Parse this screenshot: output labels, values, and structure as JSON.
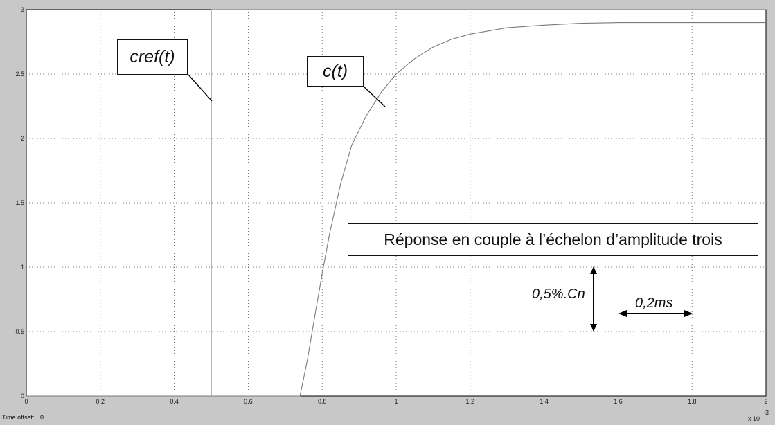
{
  "chart_data": {
    "type": "line",
    "xlabel": "",
    "ylabel": "",
    "xlim": [
      0,
      2
    ],
    "ylim": [
      0,
      3
    ],
    "x_ticks": [
      "0",
      "0.2",
      "0.4",
      "0.6",
      "0.8",
      "1",
      "1.2",
      "1.4",
      "1.6",
      "1.8",
      "2"
    ],
    "y_ticks": [
      "0",
      "0.5",
      "1",
      "1.5",
      "2",
      "2.5",
      "3"
    ],
    "x_exponent_label": "x 10",
    "x_exponent_power": "-3",
    "grid": true,
    "series": [
      {
        "name": "cref(t)",
        "x": [
          0,
          0.5,
          0.5,
          2
        ],
        "y": [
          0,
          0,
          3,
          3
        ]
      },
      {
        "name": "c(t)",
        "x": [
          0,
          0.74,
          0.76,
          0.78,
          0.8,
          0.82,
          0.85,
          0.88,
          0.92,
          0.96,
          1.0,
          1.05,
          1.1,
          1.15,
          1.2,
          1.3,
          1.4,
          1.5,
          1.6,
          1.7,
          1.8,
          1.9,
          2.0
        ],
        "y": [
          0,
          0,
          0.28,
          0.62,
          0.95,
          1.26,
          1.65,
          1.95,
          2.18,
          2.36,
          2.5,
          2.62,
          2.71,
          2.77,
          2.81,
          2.86,
          2.88,
          2.895,
          2.9,
          2.9,
          2.9,
          2.9,
          2.9
        ]
      }
    ],
    "annotations": {
      "cref_label": "cref(t)",
      "c_label": "c(t)",
      "title": "Réponse en couple à l’échelon d’amplitude trois",
      "vertical_scale": "0,5%.Cn",
      "horizontal_scale": "0,2ms"
    }
  },
  "footer": {
    "time_offset_label": "Time offset:",
    "time_offset_value": "0"
  }
}
